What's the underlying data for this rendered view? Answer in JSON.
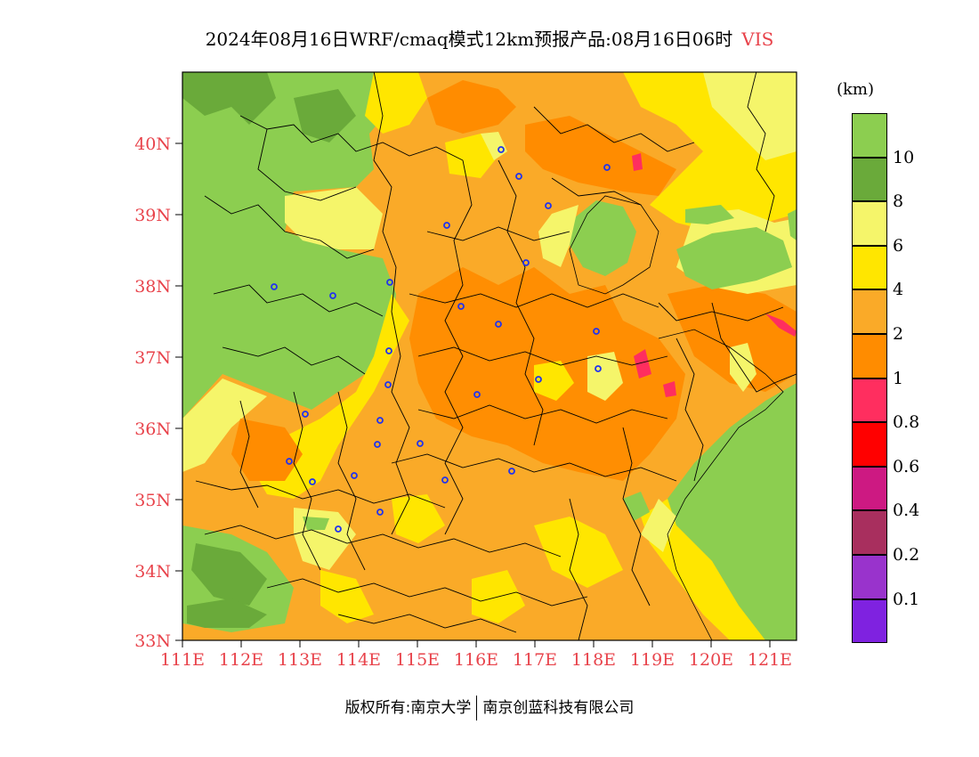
{
  "title": {
    "main": "2024年08月16日WRF/cmaq模式12km预报产品:08月16日06时",
    "variable": "VIS"
  },
  "legend": {
    "unit": "(km)",
    "colors": [
      "#8cce50",
      "#6aaa3a",
      "#f5f56a",
      "#ffe600",
      "#faaa28",
      "#ff8c00",
      "#ff2e5f",
      "#ff0000",
      "#cd1982",
      "#a82f5e",
      "#9933cc",
      "#7f22e0"
    ],
    "labels": [
      "10",
      "8",
      "6",
      "4",
      "2",
      "1",
      "0.8",
      "0.6",
      "0.4",
      "0.2",
      "0.1"
    ]
  },
  "map": {
    "lat_labels": [
      "40N",
      "39N",
      "38N",
      "37N",
      "36N",
      "35N",
      "34N",
      "33N"
    ],
    "lon_labels": [
      "111E",
      "112E",
      "113E",
      "114E",
      "115E",
      "116E",
      "117E",
      "118E",
      "119E",
      "120E",
      "121E"
    ],
    "stations_icon": "city-station-marker-icon"
  },
  "footer": {
    "left": "版权所有:南京大学",
    "right": "南京创蓝科技有限公司"
  }
}
